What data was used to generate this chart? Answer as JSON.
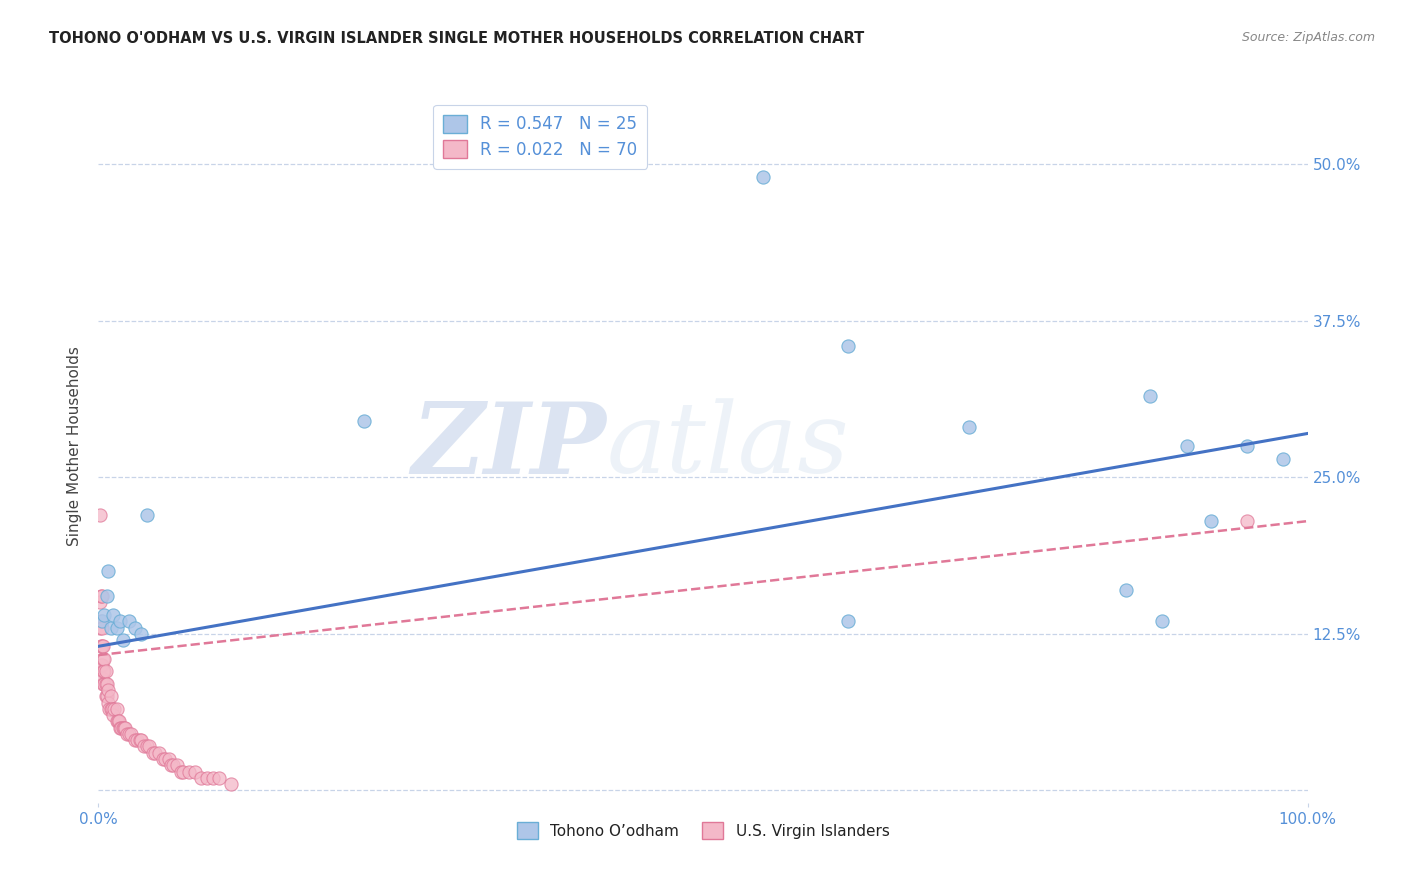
{
  "title": "TOHONO O'ODHAM VS U.S. VIRGIN ISLANDER SINGLE MOTHER HOUSEHOLDS CORRELATION CHART",
  "source": "Source: ZipAtlas.com",
  "ylabel": "Single Mother Households",
  "ytick_values": [
    0.0,
    0.125,
    0.25,
    0.375,
    0.5
  ],
  "ytick_labels": [
    "",
    "12.5%",
    "25.0%",
    "37.5%",
    "50.0%"
  ],
  "xlim": [
    0.0,
    1.0
  ],
  "ylim": [
    -0.01,
    0.56
  ],
  "watermark_zip": "ZIP",
  "watermark_atlas": "atlas",
  "legend_top": [
    {
      "label": "R = 0.547   N = 25",
      "facecolor": "#aec6e8",
      "edgecolor": "#6aaed6"
    },
    {
      "label": "R = 0.022   N = 70",
      "facecolor": "#f4b8c8",
      "edgecolor": "#e07898"
    }
  ],
  "legend_bottom": [
    {
      "label": "Tohono O’odham",
      "facecolor": "#aec6e8",
      "edgecolor": "#6aaed6"
    },
    {
      "label": "U.S. Virgin Islanders",
      "facecolor": "#f4b8c8",
      "edgecolor": "#e07898"
    }
  ],
  "blue_scatter_x": [
    0.003,
    0.005,
    0.007,
    0.008,
    0.01,
    0.012,
    0.015,
    0.018,
    0.02,
    0.025,
    0.03,
    0.035,
    0.04,
    0.22,
    0.55,
    0.62,
    0.72,
    0.85,
    0.87,
    0.88,
    0.9,
    0.92,
    0.95,
    0.62,
    0.98
  ],
  "blue_scatter_y": [
    0.135,
    0.14,
    0.155,
    0.175,
    0.13,
    0.14,
    0.13,
    0.135,
    0.12,
    0.135,
    0.13,
    0.125,
    0.22,
    0.295,
    0.49,
    0.355,
    0.29,
    0.16,
    0.315,
    0.135,
    0.275,
    0.215,
    0.275,
    0.135,
    0.265
  ],
  "pink_scatter_x": [
    0.001,
    0.001,
    0.001,
    0.002,
    0.002,
    0.002,
    0.002,
    0.003,
    0.003,
    0.003,
    0.003,
    0.003,
    0.004,
    0.004,
    0.004,
    0.004,
    0.005,
    0.005,
    0.005,
    0.006,
    0.006,
    0.006,
    0.007,
    0.007,
    0.008,
    0.008,
    0.009,
    0.01,
    0.01,
    0.011,
    0.012,
    0.013,
    0.015,
    0.015,
    0.016,
    0.017,
    0.018,
    0.019,
    0.02,
    0.021,
    0.022,
    0.024,
    0.025,
    0.027,
    0.03,
    0.032,
    0.034,
    0.035,
    0.038,
    0.04,
    0.042,
    0.045,
    0.047,
    0.05,
    0.053,
    0.055,
    0.058,
    0.06,
    0.062,
    0.065,
    0.068,
    0.07,
    0.075,
    0.08,
    0.085,
    0.09,
    0.095,
    0.1,
    0.11,
    0.95
  ],
  "pink_scatter_y": [
    0.13,
    0.15,
    0.22,
    0.1,
    0.115,
    0.135,
    0.155,
    0.09,
    0.1,
    0.115,
    0.13,
    0.155,
    0.085,
    0.095,
    0.105,
    0.115,
    0.085,
    0.095,
    0.105,
    0.075,
    0.085,
    0.095,
    0.075,
    0.085,
    0.07,
    0.08,
    0.065,
    0.065,
    0.075,
    0.065,
    0.06,
    0.065,
    0.055,
    0.065,
    0.055,
    0.055,
    0.05,
    0.05,
    0.05,
    0.05,
    0.05,
    0.045,
    0.045,
    0.045,
    0.04,
    0.04,
    0.04,
    0.04,
    0.035,
    0.035,
    0.035,
    0.03,
    0.03,
    0.03,
    0.025,
    0.025,
    0.025,
    0.02,
    0.02,
    0.02,
    0.015,
    0.015,
    0.015,
    0.015,
    0.01,
    0.01,
    0.01,
    0.01,
    0.005,
    0.215
  ],
  "blue_line_x": [
    0.0,
    1.0
  ],
  "blue_line_y": [
    0.115,
    0.285
  ],
  "pink_line_x": [
    0.0,
    1.0
  ],
  "pink_line_y": [
    0.108,
    0.215
  ],
  "blue_line_color": "#4472c4",
  "blue_scatter_face": "#aec6e8",
  "blue_scatter_edge": "#6aaed6",
  "pink_line_color": "#e07898",
  "pink_scatter_face": "#f4b8c8",
  "pink_scatter_edge": "#e07898",
  "grid_color": "#c8d4e8",
  "bg_color": "#ffffff",
  "title_color": "#222222",
  "axis_tick_color": "#5590d8",
  "ylabel_color": "#444444",
  "marker_size": 90,
  "source_color": "#888888"
}
